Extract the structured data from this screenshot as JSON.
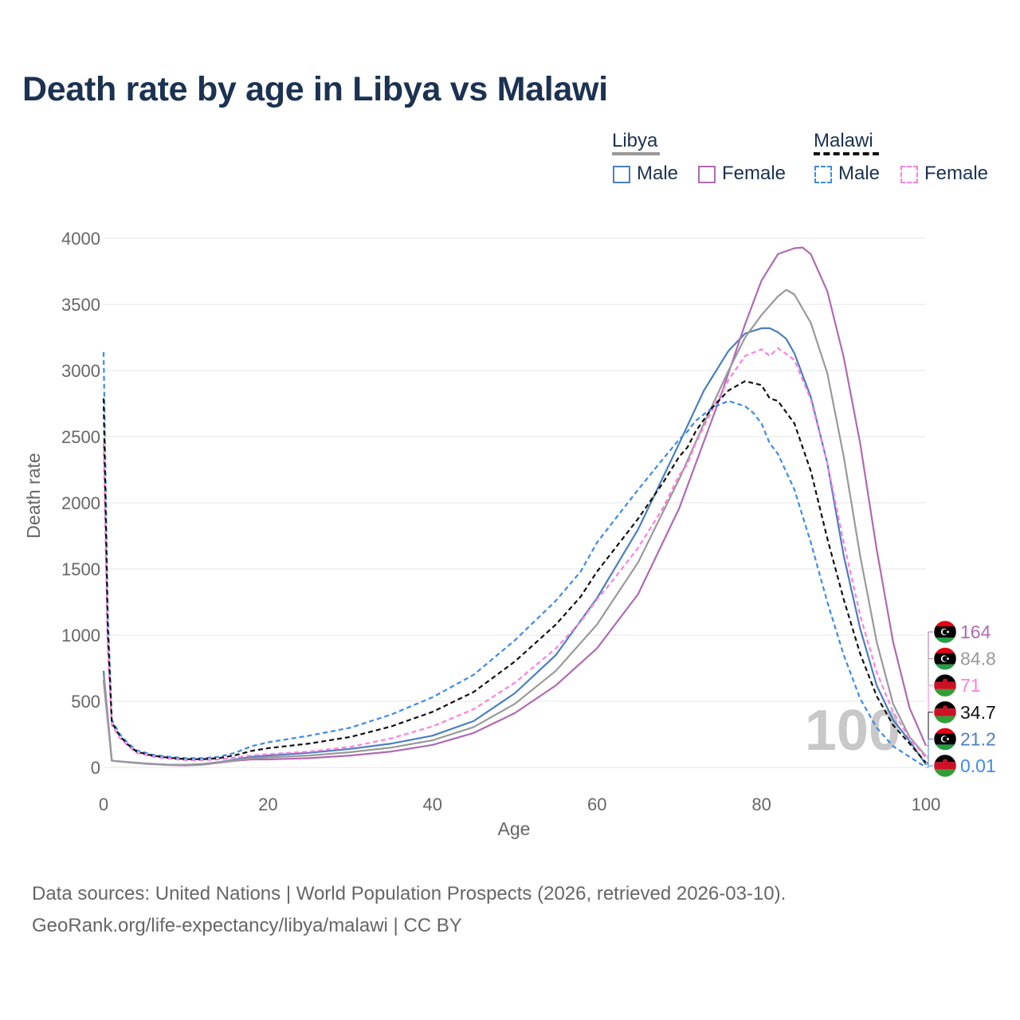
{
  "title": "Death rate by age in Libya vs Malawi",
  "legend": {
    "groups": [
      {
        "name": "Libya",
        "style": "solid",
        "color": "#999999"
      },
      {
        "name": "Malawi",
        "style": "dashed",
        "color": "#111111"
      }
    ],
    "items": [
      {
        "label": "Male",
        "group": "Libya",
        "style": "solid",
        "color": "#4a7fc1"
      },
      {
        "label": "Female",
        "group": "Libya",
        "style": "solid",
        "color": "#b06ab3"
      },
      {
        "label": "Male",
        "group": "Malawi",
        "style": "dashed",
        "color": "#3d8be8"
      },
      {
        "label": "Female",
        "group": "Malawi",
        "style": "dashed",
        "color": "#ff7ee0"
      }
    ]
  },
  "chart_data": {
    "type": "line",
    "title": "Death rate by age in Libya vs Malawi",
    "xlabel": "Age",
    "ylabel": "Death rate",
    "xlim": [
      0,
      100
    ],
    "ylim": [
      0,
      4000
    ],
    "xticks": [
      0,
      20,
      40,
      60,
      80,
      100
    ],
    "yticks": [
      0,
      500,
      1000,
      1500,
      2000,
      2500,
      3000,
      3500,
      4000
    ],
    "watermark": "100",
    "series": [
      {
        "name": "Libya Male",
        "country": "Libya",
        "color": "#4a7fc1",
        "dash": false,
        "x": [
          0,
          1,
          3,
          5,
          8,
          10,
          12,
          14,
          16,
          18,
          20,
          25,
          30,
          35,
          40,
          45,
          50,
          55,
          60,
          65,
          70,
          73,
          76,
          78,
          80,
          81,
          82,
          83,
          84,
          86,
          88,
          90,
          92,
          94,
          96,
          98,
          100
        ],
        "y": [
          730,
          50,
          40,
          30,
          20,
          20,
          25,
          40,
          60,
          80,
          90,
          110,
          140,
          180,
          240,
          350,
          560,
          850,
          1280,
          1800,
          2450,
          2850,
          3150,
          3280,
          3320,
          3320,
          3290,
          3240,
          3130,
          2800,
          2300,
          1600,
          1050,
          620,
          360,
          200,
          21.2
        ],
        "end_label": "21.2"
      },
      {
        "name": "Libya Female",
        "country": "Libya",
        "color": "#b06ab3",
        "dash": false,
        "x": [
          0,
          1,
          3,
          5,
          8,
          10,
          12,
          14,
          16,
          18,
          20,
          25,
          30,
          35,
          40,
          45,
          50,
          55,
          60,
          65,
          70,
          75,
          78,
          80,
          82,
          84,
          85,
          86,
          88,
          90,
          92,
          94,
          96,
          98,
          100
        ],
        "y": [
          660,
          50,
          38,
          28,
          18,
          15,
          20,
          35,
          50,
          60,
          60,
          70,
          90,
          120,
          170,
          260,
          410,
          620,
          900,
          1310,
          1960,
          2800,
          3350,
          3680,
          3880,
          3925,
          3930,
          3880,
          3600,
          3100,
          2450,
          1650,
          950,
          450,
          164
        ],
        "end_label": "164"
      },
      {
        "name": "Libya Both",
        "country": "Libya",
        "color": "#999999",
        "dash": false,
        "x": [
          0,
          1,
          3,
          5,
          8,
          10,
          12,
          14,
          16,
          18,
          20,
          25,
          30,
          35,
          40,
          45,
          50,
          55,
          60,
          65,
          70,
          73,
          76,
          78,
          80,
          82,
          83,
          84,
          86,
          88,
          90,
          92,
          94,
          96,
          98,
          100
        ],
        "y": [
          700,
          50,
          39,
          29,
          19,
          18,
          22,
          38,
          55,
          70,
          75,
          90,
          115,
          150,
          205,
          305,
          480,
          730,
          1080,
          1550,
          2180,
          2600,
          3000,
          3250,
          3420,
          3560,
          3610,
          3575,
          3360,
          2980,
          2350,
          1600,
          950,
          480,
          230,
          84.8
        ],
        "end_label": "84.8"
      },
      {
        "name": "Malawi Male",
        "country": "Malawi",
        "color": "#3d8be8",
        "dash": true,
        "x": [
          0,
          0.5,
          1,
          2,
          3,
          4,
          6,
          8,
          10,
          12,
          14,
          16,
          18,
          20,
          25,
          30,
          35,
          40,
          45,
          50,
          55,
          58,
          60,
          62,
          65,
          68,
          70,
          71,
          72,
          74,
          76,
          78,
          79,
          80,
          81,
          82,
          84,
          86,
          88,
          90,
          92,
          94,
          96,
          98,
          100
        ],
        "y": [
          3140,
          1200,
          360,
          250,
          180,
          130,
          95,
          80,
          70,
          70,
          80,
          110,
          160,
          190,
          240,
          300,
          400,
          530,
          700,
          960,
          1260,
          1480,
          1700,
          1860,
          2100,
          2330,
          2480,
          2540,
          2620,
          2720,
          2770,
          2730,
          2680,
          2600,
          2450,
          2370,
          2100,
          1700,
          1250,
          850,
          520,
          300,
          160,
          80,
          0.01
        ],
        "end_label": "0.01"
      },
      {
        "name": "Malawi Female",
        "country": "Malawi",
        "color": "#ff7ee0",
        "dash": true,
        "x": [
          0,
          0.5,
          1,
          2,
          3,
          4,
          6,
          8,
          10,
          12,
          14,
          16,
          18,
          20,
          25,
          30,
          35,
          40,
          45,
          50,
          55,
          58,
          60,
          62,
          65,
          68,
          70,
          71,
          72,
          74,
          76,
          78,
          80,
          81,
          82,
          84,
          86,
          88,
          90,
          92,
          94,
          96,
          98,
          100
        ],
        "y": [
          2450,
          900,
          320,
          220,
          160,
          110,
          80,
          65,
          55,
          55,
          60,
          75,
          90,
          100,
          120,
          155,
          220,
          310,
          440,
          640,
          900,
          1100,
          1270,
          1420,
          1660,
          1960,
          2210,
          2290,
          2450,
          2700,
          2930,
          3110,
          3160,
          3110,
          3170,
          3080,
          2780,
          2300,
          1700,
          1150,
          720,
          420,
          220,
          71
        ],
        "end_label": "71"
      },
      {
        "name": "Malawi Both",
        "country": "Malawi",
        "color": "#111111",
        "dash": true,
        "x": [
          0,
          0.5,
          1,
          2,
          3,
          4,
          6,
          8,
          10,
          12,
          14,
          16,
          18,
          20,
          25,
          30,
          35,
          40,
          45,
          50,
          55,
          58,
          60,
          62,
          65,
          68,
          70,
          71,
          72,
          74,
          76,
          78,
          80,
          81,
          82,
          84,
          86,
          88,
          90,
          92,
          94,
          96,
          98,
          100
        ],
        "y": [
          2790,
          1050,
          340,
          235,
          170,
          120,
          88,
          72,
          62,
          62,
          70,
          92,
          125,
          145,
          180,
          230,
          310,
          420,
          570,
          800,
          1080,
          1290,
          1480,
          1640,
          1880,
          2150,
          2350,
          2420,
          2540,
          2720,
          2850,
          2920,
          2890,
          2790,
          2770,
          2600,
          2240,
          1730,
          1270,
          860,
          540,
          320,
          180,
          34.7
        ],
        "end_label": "34.7"
      }
    ],
    "end_labels": [
      {
        "text": "164",
        "color": "#b06ab3",
        "flag": "libya"
      },
      {
        "text": "84.8",
        "color": "#999999",
        "flag": "libya"
      },
      {
        "text": "71",
        "color": "#ff7ee0",
        "flag": "malawi"
      },
      {
        "text": "34.7",
        "color": "#111111",
        "flag": "malawi"
      },
      {
        "text": "21.2",
        "color": "#4a7fc1",
        "flag": "libya"
      },
      {
        "text": "0.01",
        "color": "#3d8be8",
        "flag": "malawi"
      }
    ]
  },
  "footer": {
    "line1": "Data sources: United Nations | World Population Prospects (2026, retrieved 2026-03-10).",
    "line2": "GeoRank.org/life-expectancy/libya/malawi | CC BY"
  }
}
